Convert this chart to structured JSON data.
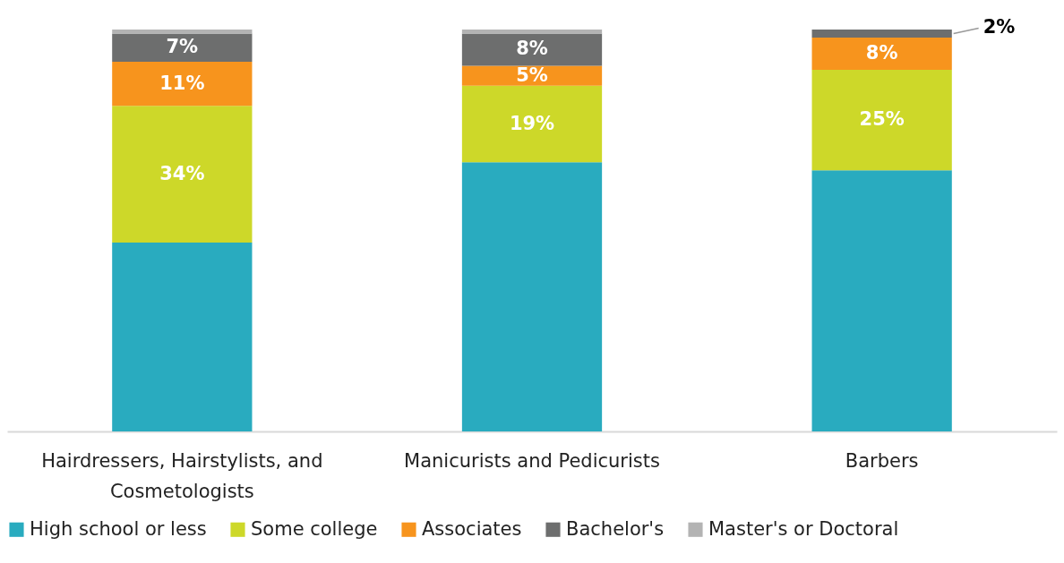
{
  "chart_data": {
    "type": "bar",
    "stacked": true,
    "tick_labels": "x",
    "legend": "bottom",
    "categories": [
      "Hairdressers, Hairstylists, and Cosmetologists",
      "Manicurists and Pedicurists",
      "Barbers"
    ],
    "series": [
      {
        "name": "High school or less",
        "color": "#29abbf",
        "values": [
          47,
          67,
          65
        ],
        "value_labels": [
          null,
          null,
          null
        ]
      },
      {
        "name": "Some college",
        "color": "#cdd829",
        "values": [
          34,
          19,
          25
        ],
        "value_labels": [
          "34%",
          "19%",
          "25%"
        ]
      },
      {
        "name": "Associates",
        "color": "#f7941d",
        "values": [
          11,
          5,
          8
        ],
        "value_labels": [
          "11%",
          "5%",
          "8%"
        ]
      },
      {
        "name": "Bachelor's",
        "color": "#6d6e6e",
        "values": [
          7,
          8,
          2
        ],
        "value_labels": [
          "7%",
          "8%",
          "2%"
        ]
      },
      {
        "name": "Master's or Doctoral",
        "color": "#b3b3b3",
        "values": [
          1,
          1,
          null
        ],
        "value_labels": [
          null,
          null,
          null
        ]
      }
    ]
  }
}
